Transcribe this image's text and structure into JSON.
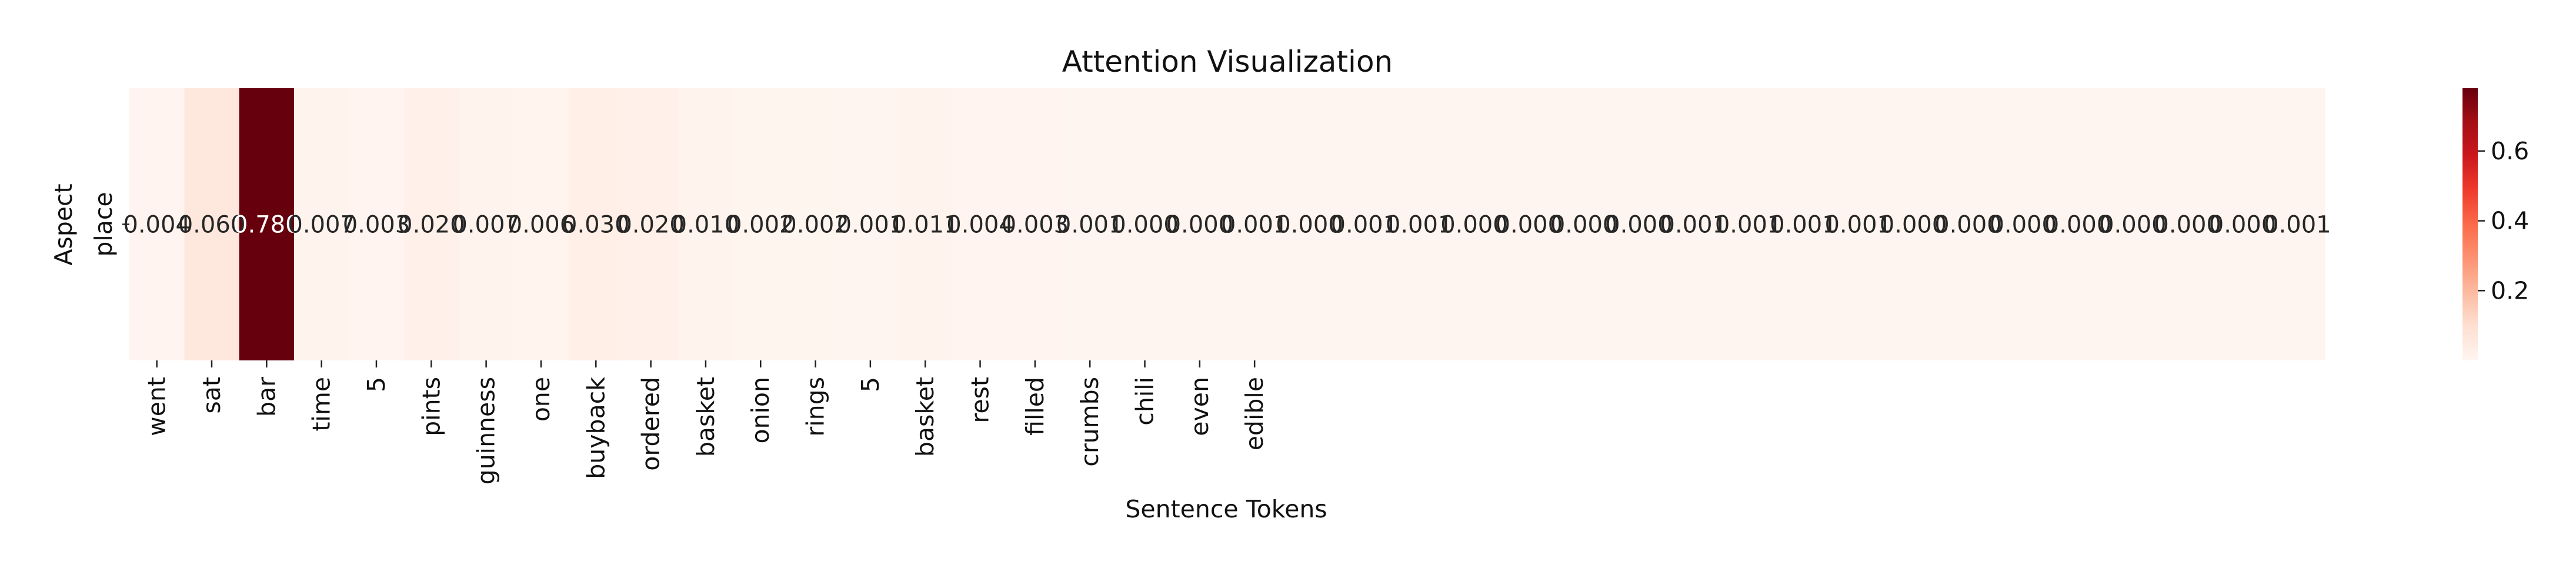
{
  "chart_data": {
    "type": "heatmap",
    "title": "Attention Visualization",
    "xlabel": "Sentence Tokens",
    "ylabel": "Aspect",
    "rows": [
      "place"
    ],
    "x_tick_labels": [
      "went",
      "sat",
      "bar",
      "time",
      "5",
      "pints",
      "guinness",
      "one",
      "buyback",
      "ordered",
      "basket",
      "onion",
      "rings",
      "5",
      "basket",
      "rest",
      "filled",
      "crumbs",
      "chili",
      "even",
      "edible"
    ],
    "values": [
      [
        0.004,
        0.06,
        0.78,
        0.007,
        0.003,
        0.02,
        0.007,
        0.006,
        0.03,
        0.02,
        0.01,
        0.002,
        0.002,
        0.001,
        0.011,
        0.004,
        0.003,
        0.001,
        0.0,
        0.0,
        0.001,
        0.0,
        0.001,
        0.001,
        0.0,
        0.0,
        0.0,
        0.0,
        0.001,
        0.001,
        0.001,
        0.001,
        0.0,
        0.0,
        0.0,
        0.0,
        0.0,
        0.0,
        0.0,
        0.001
      ]
    ],
    "cell_labels": [
      "0.004",
      "0.060",
      "0.780",
      "0.007",
      "0.003",
      "0.020",
      "0.007",
      "0.006",
      "0.030",
      "0.020",
      "0.010",
      "0.002",
      "0.002",
      "0.001",
      "0.011",
      "0.004",
      "0.003",
      "0.001",
      "0.000",
      "0.000",
      "0.001",
      "0.000",
      "0.001",
      "0.001",
      "0.000",
      "0.000",
      "0.000",
      "0.000",
      "0.001",
      "0.001",
      "0.001",
      "0.001",
      "0.000",
      "0.000",
      "0.000",
      "0.000",
      "0.000",
      "0.000",
      "0.000",
      "0.001"
    ],
    "colormap": "Reds",
    "colorbar": {
      "range": [
        0.0,
        0.78
      ],
      "ticks": [
        0.2,
        0.4,
        0.6
      ],
      "tick_labels": [
        "0.2",
        "0.4",
        "0.6"
      ]
    }
  }
}
